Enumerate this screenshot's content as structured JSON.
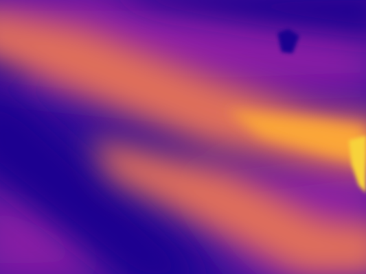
{
  "image": {
    "kind": "depth-map",
    "colormap": "plasma",
    "colormap_stops": [
      "#0d0887",
      "#5b02a3",
      "#9a179b",
      "#cb4678",
      "#eb7852",
      "#fbb32f",
      "#f0f921"
    ],
    "base_color": "#2e0a96",
    "band_colors": {
      "deep": "#1c0690",
      "mid": "#8c1aa5",
      "warm": "#e0705a",
      "hot": "#fba638",
      "peak": "#f7d23a"
    }
  }
}
